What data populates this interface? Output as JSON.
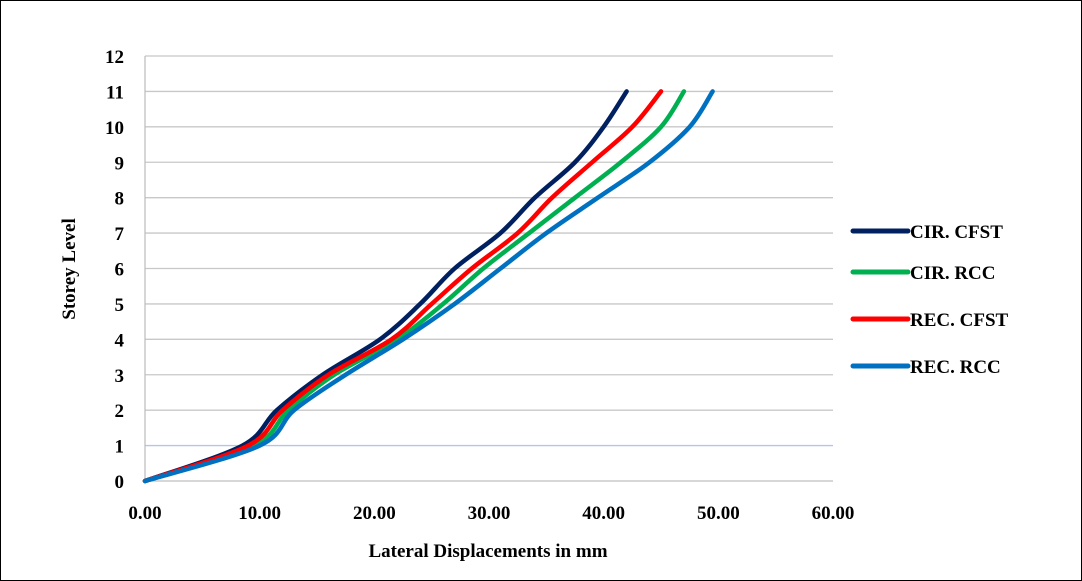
{
  "chart_data": {
    "type": "line",
    "title": "",
    "xlabel": "Lateral Displacements in mm",
    "ylabel": "Storey Level",
    "xlim": [
      0,
      60
    ],
    "ylim": [
      0,
      12
    ],
    "x_ticks": [
      "0.00",
      "10.00",
      "20.00",
      "30.00",
      "40.00",
      "50.00",
      "60.00"
    ],
    "y_ticks": [
      "0",
      "1",
      "2",
      "3",
      "4",
      "5",
      "6",
      "7",
      "8",
      "9",
      "10",
      "11",
      "12"
    ],
    "grid": "horizontal",
    "legend_position": "right",
    "y": [
      0,
      1,
      2,
      3,
      4,
      5,
      6,
      7,
      8,
      9,
      10,
      11
    ],
    "series": [
      {
        "name": "CIR. CFST",
        "color": "#002060",
        "x": [
          0,
          8.5,
          11.5,
          15.5,
          20.5,
          24,
          27,
          31,
          34,
          37.5,
          40,
          42
        ]
      },
      {
        "name": "CIR. RCC",
        "color": "#00B050",
        "x": [
          0,
          9.5,
          12.5,
          16.5,
          22,
          26,
          29.5,
          33.5,
          37.5,
          41.5,
          45,
          47
        ]
      },
      {
        "name": "REC. CFST",
        "color": "#FF0000",
        "x": [
          0,
          9,
          12,
          16,
          21.5,
          25,
          28.5,
          32.5,
          35.5,
          39,
          42.5,
          45
        ]
      },
      {
        "name": "REC. RCC",
        "color": "#0070C0",
        "x": [
          0,
          10,
          13,
          17.5,
          22.5,
          27,
          31,
          35,
          39.5,
          44,
          47.5,
          49.5
        ]
      }
    ]
  }
}
